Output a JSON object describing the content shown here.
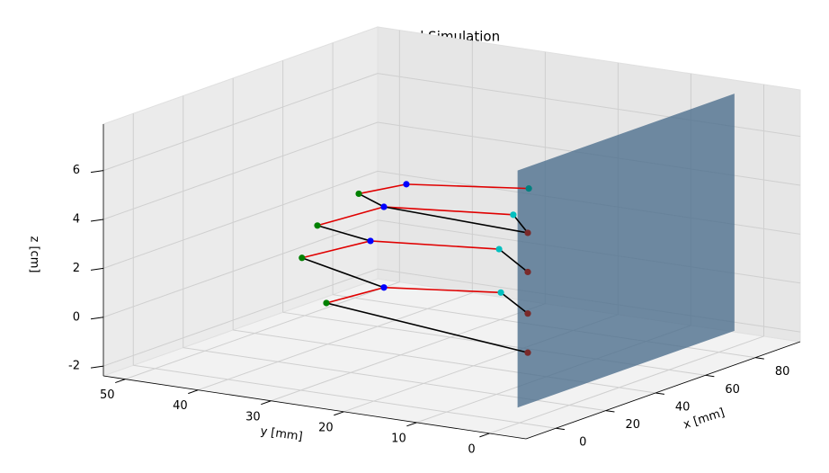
{
  "chart_data": {
    "type": "scatter3d",
    "title": "Hand Simulation",
    "x_label": "x [mm]",
    "y_label": "y [mm]",
    "z_label": "z [cm]",
    "xlim": [
      -12,
      98
    ],
    "ylim": [
      -5,
      53
    ],
    "zlim": [
      -2.4,
      7.9
    ],
    "xticks": [
      0,
      20,
      40,
      60,
      80
    ],
    "yticks": [
      0,
      10,
      20,
      30,
      40,
      50
    ],
    "zticks": [
      -2,
      0,
      2,
      4,
      6
    ],
    "grid": true,
    "points": {
      "x": [
        46.6,
        30.0,
        23.8,
        33.6,
        42.3,
        33.3,
        27.9,
        33.3,
        20.9,
        15.2,
        15.9,
        12.5,
        12.1,
        12.1,
        12.1,
        12.1
      ],
      "y": [
        38,
        38,
        38,
        38,
        30,
        30,
        30,
        30,
        8,
        8,
        8,
        3,
        3,
        3,
        3,
        3
      ],
      "z": [
        3.6,
        2.9,
        1.8,
        -0.4,
        4.5,
        3.9,
        2.7,
        0.6,
        5.0,
        3.8,
        2.0,
        6.6,
        4.8,
        3.2,
        1.5,
        -0.1
      ],
      "colors": [
        "#008000",
        "#008000",
        "#008000",
        "#008000",
        "#0000ff",
        "#0000ff",
        "#0000ff",
        "#0000ff",
        "#00bfbf",
        "#00bfbf",
        "#00bfbf",
        "#008080",
        "#7a2a2a",
        "#7a2a2a",
        "#7a2a2a",
        "#7a2a2a"
      ]
    },
    "bones": [
      {
        "from": 0,
        "to": 4,
        "color": "#e00000"
      },
      {
        "from": 4,
        "to": 11,
        "color": "#e00000"
      },
      {
        "from": 1,
        "to": 5,
        "color": "#e00000"
      },
      {
        "from": 5,
        "to": 8,
        "color": "#e00000"
      },
      {
        "from": 2,
        "to": 6,
        "color": "#e00000"
      },
      {
        "from": 6,
        "to": 9,
        "color": "#e00000"
      },
      {
        "from": 3,
        "to": 7,
        "color": "#e00000"
      },
      {
        "from": 7,
        "to": 10,
        "color": "#e00000"
      },
      {
        "from": 0,
        "to": 5,
        "color": "#000000"
      },
      {
        "from": 1,
        "to": 6,
        "color": "#000000"
      },
      {
        "from": 2,
        "to": 7,
        "color": "#000000"
      },
      {
        "from": 3,
        "to": 15,
        "color": "#000000"
      },
      {
        "from": 8,
        "to": 12,
        "color": "#000000"
      },
      {
        "from": 9,
        "to": 13,
        "color": "#000000"
      },
      {
        "from": 10,
        "to": 14,
        "color": "#000000"
      },
      {
        "from": 5,
        "to": 12,
        "color": "#000000"
      }
    ],
    "plane": {
      "y": 3,
      "x": [
        8,
        95
      ],
      "z": [
        -2.2,
        7.5
      ],
      "color": "#4a6d8c"
    }
  }
}
